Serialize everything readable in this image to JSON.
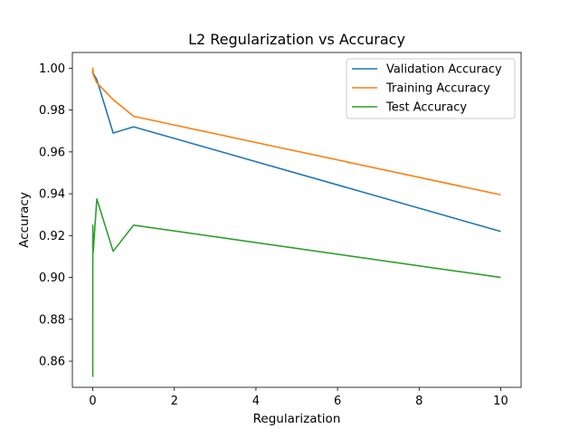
{
  "chart_data": {
    "type": "line",
    "title": "L2 Regularization vs Accuracy",
    "xlabel": "Regularization",
    "ylabel": "Accuracy",
    "xlim": [
      -0.5,
      10.5
    ],
    "ylim": [
      0.8475,
      1.0075
    ],
    "x_ticks": [
      0,
      2,
      4,
      6,
      8,
      10
    ],
    "y_ticks": [
      0.86,
      0.88,
      0.9,
      0.92,
      0.94,
      0.96,
      0.98,
      1.0
    ],
    "x_tick_labels": [
      "0",
      "2",
      "4",
      "6",
      "8",
      "10"
    ],
    "y_tick_labels": [
      "0.86",
      "0.88",
      "0.90",
      "0.92",
      "0.94",
      "0.96",
      "0.98",
      "1.00"
    ],
    "grid": false,
    "legend_position": "top-right",
    "series": [
      {
        "name": "Validation Accuracy",
        "color": "#1f77b4",
        "x": [
          0.0001,
          0.001,
          0.01,
          0.1,
          0.5,
          1,
          10
        ],
        "y": [
          0.9975,
          0.9995,
          0.9975,
          0.9945,
          0.969,
          0.972,
          0.922
        ]
      },
      {
        "name": "Training Accuracy",
        "color": "#ff7f0e",
        "x": [
          0.0001,
          0.001,
          0.01,
          0.1,
          0.5,
          1,
          10
        ],
        "y": [
          0.9985,
          1.0,
          0.997,
          0.993,
          0.985,
          0.977,
          0.9395
        ]
      },
      {
        "name": "Test Accuracy",
        "color": "#2ca02c",
        "x": [
          0.0001,
          0.001,
          0.01,
          0.1,
          0.5,
          1,
          10
        ],
        "y": [
          0.8525,
          0.925,
          0.912,
          0.9375,
          0.9125,
          0.925,
          0.9
        ]
      }
    ]
  }
}
